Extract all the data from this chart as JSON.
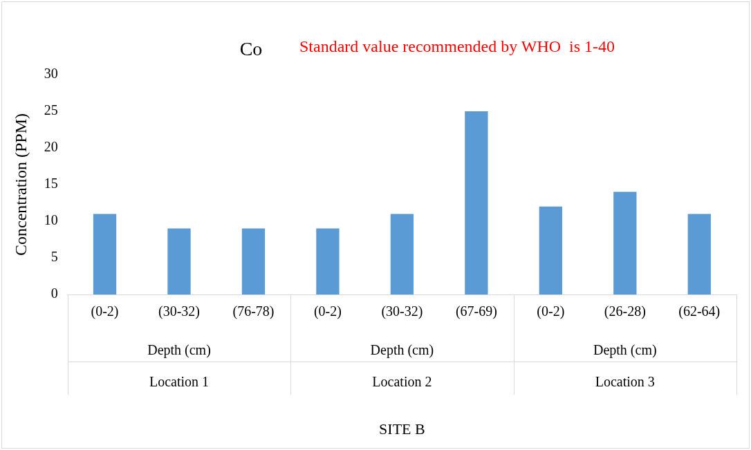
{
  "chart_data": {
    "type": "bar",
    "title": "Co",
    "subtitle": "Standard value recommended by WHO  is 1-40",
    "ylabel": "Concentration (PPM)",
    "categories": [
      "(0-2)",
      "(30-32)",
      "(76-78)",
      "(0-2)",
      "(30-32)",
      "(67-69)",
      "(0-2)",
      "(26-28)",
      "(62-64)"
    ],
    "values": [
      11,
      9,
      9,
      9,
      11,
      25,
      12,
      14,
      11
    ],
    "color": "#5b9bd5",
    "ylim": [
      0,
      30
    ],
    "yticks": [
      0,
      5,
      10,
      15,
      20,
      25,
      30
    ],
    "grid": false,
    "legend": false,
    "annotations": [
      "Depth (cm)",
      "Depth (cm)",
      "Depth (cm)",
      "Location 1",
      "Location 2",
      "Location 3",
      "SITE B"
    ]
  }
}
